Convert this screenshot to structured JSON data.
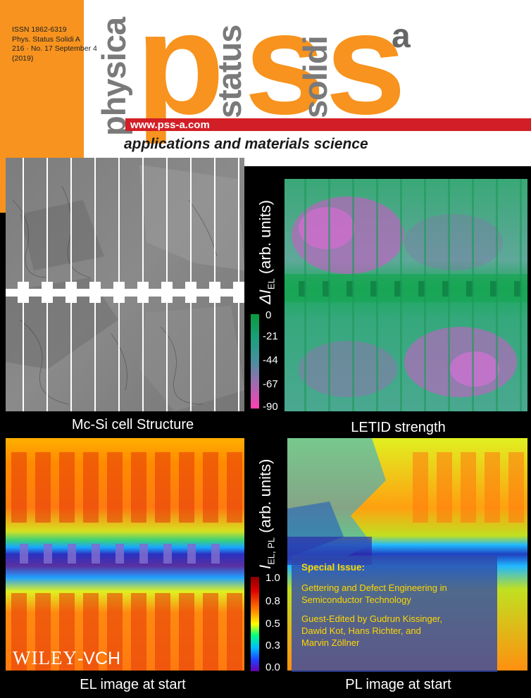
{
  "journal": {
    "issn": "ISSN 1862-6319",
    "abbrev": "Phys. Status Solidi A",
    "volume_line": "216 · No. 17 September 4",
    "year_paren": "(2019)",
    "word1": "physica",
    "letter1": "p",
    "word2": "status",
    "letter2": "s",
    "word3": "solidi",
    "letter3": "s",
    "superscript": "a",
    "url": "www.pss-a.com",
    "tagline": "applications and materials science",
    "issue_number": "17",
    "issue_year": "2019"
  },
  "panels": {
    "top_left_caption": "Mc-Si cell Structure",
    "top_right_caption": "LETID strength",
    "bottom_left_caption": "EL image at start",
    "bottom_right_caption": "PL image at start"
  },
  "colorbar_top": {
    "label_delta": "ΔI",
    "label_sub": "EL",
    "label_rest": " (arb. units)",
    "ticks": [
      "0",
      "-21",
      "-44",
      "-67",
      "-90"
    ]
  },
  "colorbar_bottom": {
    "label_main": "I",
    "label_sub": "EL, PL",
    "label_rest": " (arb. units)",
    "ticks": [
      "1.0",
      "0.8",
      "0.5",
      "0.3",
      "0.0"
    ]
  },
  "special_issue": {
    "heading": "Special Issue:",
    "title_line1": "Gettering and Defect Engineering in",
    "title_line2": "Semiconductor Technology",
    "editors_line1": "Guest-Edited by Gudrun Kissinger,",
    "editors_line2": "Dawid Kot, Hans Richter, and",
    "editors_line3": "Marvin Zöllner"
  },
  "publisher": {
    "name": "WILEY",
    "suffix": "-VCH"
  }
}
